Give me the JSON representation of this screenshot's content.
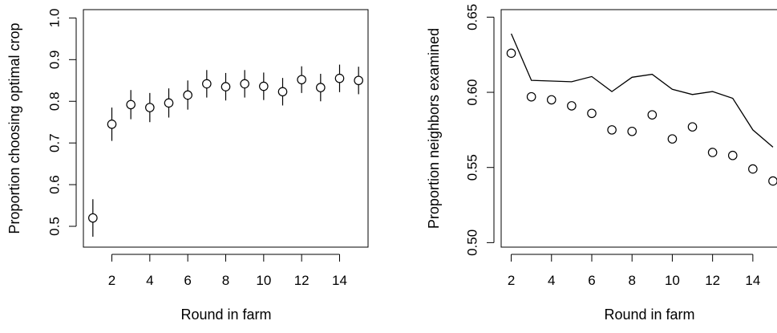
{
  "chart_data": [
    {
      "type": "scatter",
      "title": "",
      "xlabel": "Round in farm",
      "ylabel": "Proportion choosing optimal crop",
      "xlim": [
        0.5,
        15.5
      ],
      "ylim": [
        0.45,
        1.02
      ],
      "xticks": [
        "2",
        "4",
        "6",
        "8",
        "10",
        "12",
        "14"
      ],
      "yticks": [
        "0.5",
        "0.6",
        "0.7",
        "0.8",
        "0.9",
        "1.0"
      ],
      "grid": false,
      "series": [
        {
          "marker": "open-circle",
          "error_bars": true,
          "x": [
            1,
            2,
            3,
            4,
            5,
            6,
            7,
            8,
            9,
            10,
            11,
            12,
            13,
            14,
            15
          ],
          "y": [
            0.52,
            0.745,
            0.792,
            0.785,
            0.796,
            0.815,
            0.842,
            0.835,
            0.842,
            0.836,
            0.823,
            0.852,
            0.833,
            0.855,
            0.85
          ],
          "lower": [
            0.475,
            0.705,
            0.757,
            0.75,
            0.761,
            0.78,
            0.809,
            0.802,
            0.809,
            0.803,
            0.79,
            0.82,
            0.8,
            0.822,
            0.817
          ],
          "upper": [
            0.565,
            0.785,
            0.827,
            0.82,
            0.831,
            0.85,
            0.875,
            0.868,
            0.875,
            0.869,
            0.856,
            0.884,
            0.866,
            0.888,
            0.883
          ]
        }
      ]
    },
    {
      "type": "scatter",
      "title": "",
      "xlabel": "Round in farm",
      "ylabel": "Proportion neighbors examined",
      "xlim": [
        1.5,
        15.2
      ],
      "ylim": [
        0.497,
        0.655
      ],
      "xticks": [
        "2",
        "4",
        "6",
        "8",
        "10",
        "12",
        "14"
      ],
      "yticks": [
        "0.50",
        "0.55",
        "0.60",
        "0.65"
      ],
      "grid": false,
      "series": [
        {
          "marker": "open-circle",
          "x": [
            2,
            3,
            4,
            5,
            6,
            7,
            8,
            9,
            10,
            11,
            12,
            13,
            14,
            15
          ],
          "y": [
            0.626,
            0.597,
            0.595,
            0.591,
            0.586,
            0.575,
            0.574,
            0.585,
            0.569,
            0.577,
            0.56,
            0.558,
            0.549,
            0.541
          ]
        },
        {
          "marker": "line",
          "x": [
            2,
            3,
            4,
            5,
            6,
            7,
            8,
            9,
            10,
            11,
            12,
            13,
            14,
            15
          ],
          "y": [
            0.639,
            0.608,
            0.6075,
            0.607,
            0.6105,
            0.6005,
            0.61,
            0.612,
            0.602,
            0.5985,
            0.6005,
            0.596,
            0.575,
            0.5635
          ]
        }
      ]
    }
  ]
}
